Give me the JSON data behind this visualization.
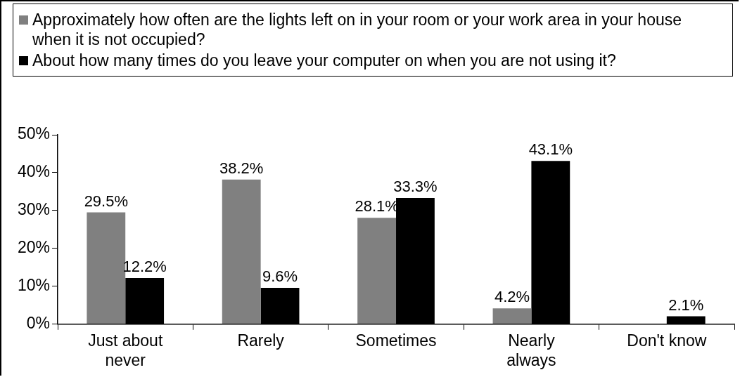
{
  "chart_data": {
    "type": "bar",
    "categories": [
      "Just about never",
      "Rarely",
      "Sometimes",
      "Nearly always",
      "Don't know"
    ],
    "series": [
      {
        "name": "Approximately how often are the lights left on in your room or your work area in your house when it is not occupied?",
        "color": "#808080",
        "values": [
          29.5,
          38.2,
          28.1,
          4.2,
          null
        ],
        "value_labels": [
          "29.5%",
          "38.2%",
          "28.1%",
          "4.2%",
          null
        ]
      },
      {
        "name": "About how many times do you leave your computer on when you are not using it?",
        "color": "#000000",
        "values": [
          12.2,
          9.6,
          33.3,
          43.1,
          2.1
        ],
        "value_labels": [
          "12.2%",
          "9.6%",
          "33.3%",
          "43.1%",
          "2.1%"
        ]
      }
    ],
    "ylim": [
      0,
      50
    ],
    "yticks": [
      {
        "value": 0,
        "label": "0%"
      },
      {
        "value": 10,
        "label": "10%"
      },
      {
        "value": 20,
        "label": "20%"
      },
      {
        "value": 30,
        "label": "30%"
      },
      {
        "value": 40,
        "label": "40%"
      },
      {
        "value": 50,
        "label": "50%"
      }
    ],
    "grid": false,
    "legend": "top"
  }
}
